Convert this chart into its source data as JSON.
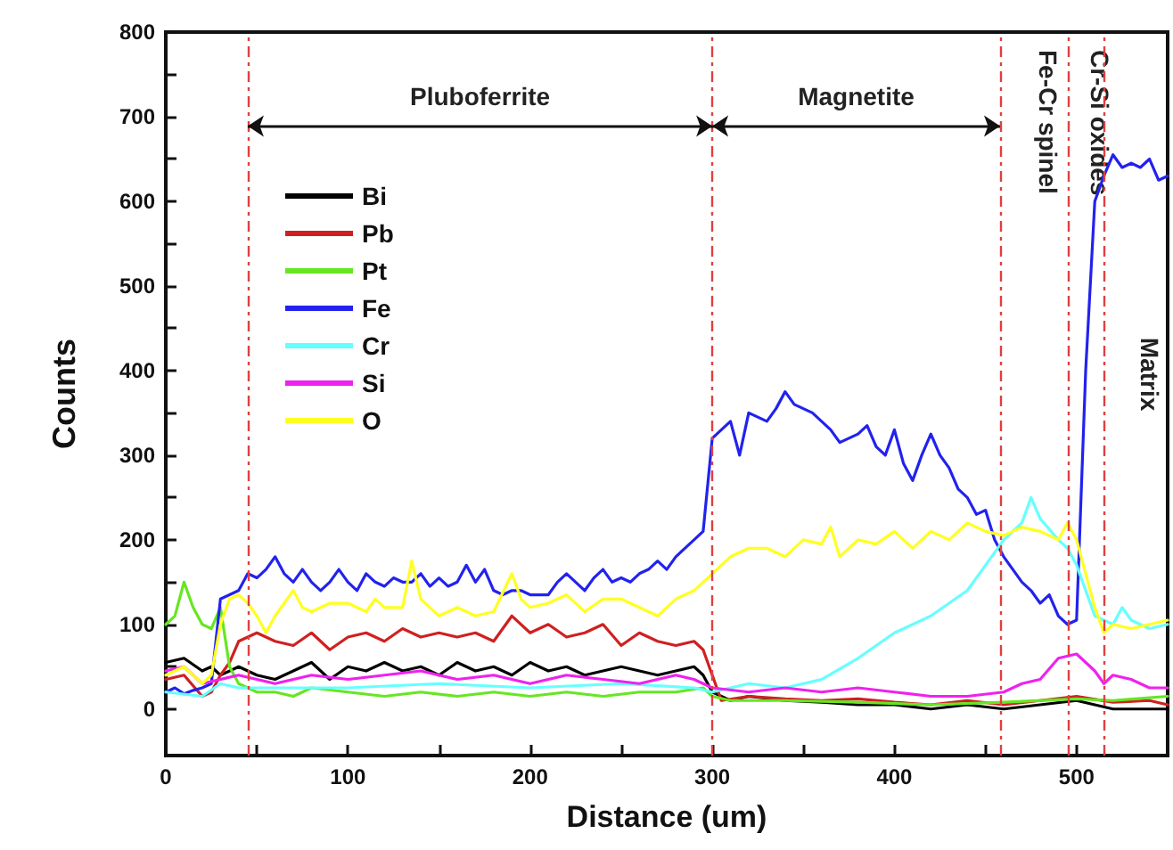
{
  "chart_data": {
    "type": "line",
    "xlabel": "Distance (um)",
    "ylabel": "Counts",
    "xlim": [
      0,
      550
    ],
    "ylim": [
      -55,
      800
    ],
    "xticks": [
      0,
      {
        "value": 50,
        "label": null
      },
      100,
      {
        "value": 150,
        "label": null
      },
      200,
      {
        "value": 250,
        "label": null
      },
      300,
      {
        "value": 350,
        "label": null
      },
      400,
      {
        "value": 450,
        "label": null
      },
      500,
      {
        "value": 550,
        "label": null
      }
    ],
    "yticks": [
      0,
      {
        "value": 50,
        "label": null
      },
      100,
      {
        "value": 150,
        "label": null
      },
      200,
      {
        "value": 250,
        "label": null
      },
      300,
      {
        "value": 350,
        "label": null
      },
      400,
      {
        "value": 450,
        "label": null
      },
      500,
      {
        "value": 550,
        "label": null
      },
      600,
      {
        "value": 650,
        "label": null
      },
      700,
      {
        "value": 750,
        "label": null
      },
      800
    ],
    "legend": "top left",
    "series": [
      {
        "name": "Bi",
        "color": "#000000",
        "x": [
          0,
          10,
          20,
          25,
          30,
          40,
          50,
          60,
          70,
          80,
          90,
          100,
          110,
          120,
          130,
          140,
          150,
          160,
          170,
          180,
          190,
          200,
          210,
          220,
          230,
          240,
          250,
          260,
          270,
          280,
          290,
          295,
          300,
          310,
          320,
          340,
          360,
          380,
          400,
          420,
          440,
          460,
          480,
          500,
          520,
          540,
          550
        ],
        "values": [
          55,
          60,
          45,
          50,
          40,
          50,
          40,
          35,
          45,
          55,
          35,
          50,
          45,
          55,
          45,
          50,
          40,
          55,
          45,
          50,
          40,
          55,
          45,
          50,
          40,
          45,
          50,
          45,
          40,
          45,
          50,
          40,
          20,
          10,
          15,
          10,
          8,
          5,
          5,
          0,
          5,
          0,
          5,
          10,
          0,
          0,
          0
        ]
      },
      {
        "name": "Pb",
        "color": "#d02020",
        "x": [
          0,
          10,
          20,
          25,
          30,
          35,
          40,
          45,
          50,
          60,
          70,
          80,
          90,
          100,
          110,
          120,
          130,
          140,
          150,
          160,
          170,
          180,
          190,
          200,
          210,
          220,
          230,
          240,
          250,
          260,
          270,
          280,
          290,
          295,
          300,
          305,
          320,
          340,
          360,
          380,
          400,
          420,
          440,
          460,
          480,
          500,
          520,
          540,
          550
        ],
        "values": [
          35,
          40,
          15,
          20,
          40,
          55,
          80,
          85,
          90,
          80,
          75,
          90,
          70,
          85,
          90,
          80,
          95,
          85,
          90,
          85,
          90,
          80,
          110,
          90,
          100,
          85,
          90,
          100,
          75,
          90,
          80,
          75,
          80,
          70,
          40,
          10,
          15,
          12,
          10,
          12,
          8,
          5,
          10,
          5,
          10,
          15,
          8,
          10,
          5
        ]
      },
      {
        "name": "Pt",
        "color": "#66e622",
        "x": [
          0,
          5,
          10,
          15,
          20,
          25,
          30,
          35,
          40,
          50,
          60,
          70,
          80,
          100,
          120,
          140,
          160,
          180,
          200,
          220,
          240,
          260,
          280,
          295,
          300,
          310,
          340,
          380,
          420,
          460,
          500,
          520,
          550
        ],
        "values": [
          100,
          110,
          150,
          120,
          100,
          95,
          120,
          50,
          30,
          20,
          20,
          15,
          25,
          20,
          15,
          20,
          15,
          20,
          15,
          20,
          15,
          20,
          20,
          25,
          15,
          10,
          10,
          8,
          5,
          8,
          12,
          10,
          15
        ]
      },
      {
        "name": "Fe",
        "color": "#2222ee",
        "x": [
          0,
          5,
          10,
          15,
          20,
          25,
          30,
          35,
          40,
          45,
          50,
          55,
          60,
          65,
          70,
          75,
          80,
          85,
          90,
          95,
          100,
          105,
          110,
          115,
          120,
          125,
          130,
          135,
          140,
          145,
          150,
          155,
          160,
          165,
          170,
          175,
          180,
          185,
          190,
          195,
          200,
          210,
          215,
          220,
          225,
          230,
          235,
          240,
          245,
          250,
          255,
          260,
          265,
          270,
          275,
          280,
          285,
          290,
          295,
          300,
          305,
          310,
          315,
          320,
          325,
          330,
          335,
          340,
          345,
          350,
          355,
          360,
          365,
          370,
          375,
          380,
          385,
          390,
          395,
          400,
          405,
          410,
          415,
          420,
          425,
          430,
          435,
          440,
          445,
          450,
          455,
          460,
          465,
          470,
          475,
          480,
          485,
          490,
          495,
          500,
          505,
          510,
          515,
          520,
          525,
          530,
          535,
          540,
          545,
          550
        ],
        "values": [
          20,
          25,
          18,
          22,
          25,
          30,
          130,
          135,
          140,
          160,
          155,
          165,
          180,
          160,
          150,
          165,
          150,
          140,
          150,
          165,
          150,
          140,
          160,
          150,
          145,
          155,
          150,
          150,
          160,
          145,
          155,
          145,
          150,
          170,
          150,
          165,
          140,
          135,
          140,
          140,
          135,
          135,
          150,
          160,
          150,
          140,
          155,
          165,
          150,
          155,
          150,
          160,
          165,
          175,
          165,
          180,
          190,
          200,
          210,
          320,
          330,
          340,
          300,
          350,
          345,
          340,
          355,
          375,
          360,
          355,
          350,
          340,
          330,
          315,
          320,
          325,
          335,
          310,
          300,
          330,
          290,
          270,
          300,
          325,
          300,
          285,
          260,
          250,
          230,
          235,
          200,
          180,
          165,
          150,
          140,
          125,
          135,
          110,
          100,
          105,
          400,
          600,
          630,
          655,
          640,
          645,
          640,
          650,
          625,
          630
        ]
      },
      {
        "name": "Cr",
        "color": "#66ffff",
        "x": [
          0,
          20,
          30,
          40,
          60,
          100,
          150,
          200,
          250,
          290,
          300,
          320,
          340,
          360,
          380,
          400,
          420,
          440,
          450,
          460,
          470,
          475,
          480,
          490,
          495,
          500,
          510,
          520,
          525,
          530,
          540,
          550
        ],
        "values": [
          20,
          15,
          30,
          25,
          25,
          25,
          30,
          25,
          30,
          25,
          20,
          30,
          25,
          35,
          60,
          90,
          110,
          140,
          170,
          200,
          220,
          250,
          225,
          200,
          190,
          170,
          110,
          100,
          120,
          105,
          95,
          100
        ]
      },
      {
        "name": "Si",
        "color": "#ee22ee",
        "x": [
          0,
          10,
          20,
          30,
          40,
          50,
          60,
          80,
          100,
          120,
          140,
          160,
          180,
          200,
          220,
          240,
          260,
          280,
          290,
          300,
          320,
          340,
          360,
          380,
          400,
          420,
          440,
          460,
          470,
          480,
          490,
          500,
          505,
          510,
          515,
          520,
          530,
          540,
          550
        ],
        "values": [
          45,
          50,
          30,
          35,
          40,
          35,
          30,
          40,
          35,
          40,
          45,
          35,
          40,
          30,
          40,
          35,
          30,
          40,
          35,
          25,
          20,
          25,
          20,
          25,
          20,
          15,
          15,
          20,
          30,
          35,
          60,
          65,
          55,
          45,
          30,
          40,
          35,
          25,
          25
        ]
      },
      {
        "name": "O",
        "color": "#ffff22",
        "x": [
          0,
          10,
          20,
          25,
          30,
          35,
          40,
          45,
          50,
          55,
          60,
          65,
          70,
          75,
          80,
          90,
          100,
          110,
          115,
          120,
          130,
          135,
          140,
          150,
          160,
          170,
          180,
          190,
          195,
          200,
          210,
          220,
          230,
          240,
          250,
          260,
          270,
          280,
          290,
          300,
          310,
          320,
          330,
          340,
          350,
          360,
          365,
          370,
          380,
          390,
          400,
          410,
          420,
          430,
          440,
          450,
          460,
          470,
          480,
          490,
          495,
          500,
          505,
          510,
          515,
          520,
          530,
          540,
          550
        ],
        "values": [
          40,
          50,
          30,
          40,
          100,
          130,
          135,
          125,
          110,
          90,
          110,
          125,
          140,
          120,
          115,
          125,
          125,
          115,
          130,
          120,
          120,
          175,
          130,
          110,
          120,
          110,
          115,
          160,
          130,
          120,
          125,
          135,
          115,
          130,
          130,
          120,
          110,
          130,
          140,
          160,
          180,
          190,
          190,
          180,
          200,
          195,
          215,
          180,
          200,
          195,
          210,
          190,
          210,
          200,
          220,
          210,
          205,
          215,
          210,
          200,
          220,
          200,
          160,
          120,
          90,
          100,
          95,
          100,
          105
        ]
      }
    ],
    "ref_lines": [
      {
        "axis": "x",
        "value": 45,
        "color": "#e04040",
        "line_style": "dashed"
      },
      {
        "axis": "x",
        "value": 300,
        "color": "#e04040",
        "line_style": "dashed"
      },
      {
        "axis": "x",
        "value": 458,
        "color": "#e04040",
        "line_style": "dashed"
      },
      {
        "axis": "x",
        "value": 495,
        "color": "#e04040",
        "line_style": "dashed"
      },
      {
        "axis": "x",
        "value": 515,
        "color": "#e04040",
        "line_style": "dashed"
      }
    ],
    "annotations": [
      "Pluboferrite",
      "Magnetite",
      "Fe-Cr spinel",
      "Cr-Si oxides",
      "Matrix"
    ]
  }
}
